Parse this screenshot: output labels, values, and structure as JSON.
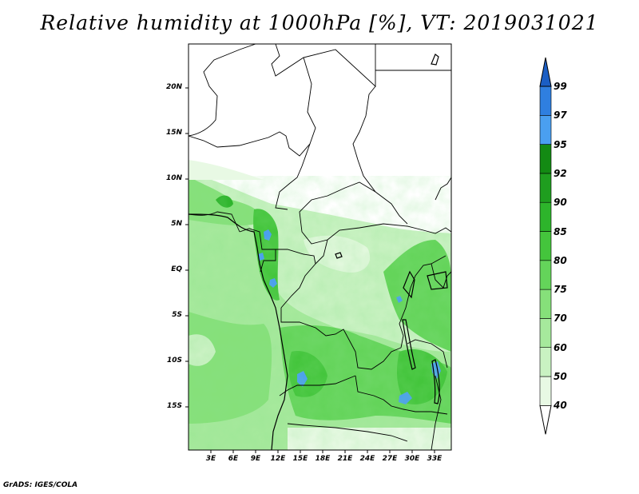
{
  "title": "Relative humidity at 1000hPa [%], VT: 2019031021",
  "credit": "GrADS: IGES/COLA",
  "map": {
    "lat_ticks": [
      "20N",
      "15N",
      "10N",
      "5N",
      "EQ",
      "5S",
      "10S",
      "15S"
    ],
    "lon_ticks": [
      "3E",
      "6E",
      "9E",
      "12E",
      "15E",
      "18E",
      "21E",
      "24E",
      "27E",
      "30E",
      "33E"
    ]
  },
  "colorbar": {
    "labels": [
      "99",
      "97",
      "95",
      "92",
      "90",
      "85",
      "80",
      "75",
      "70",
      "60",
      "50",
      "40"
    ],
    "colors": [
      "#ffffff",
      "#e8f9e4",
      "#c9f2c2",
      "#a6e99c",
      "#86e07a",
      "#64d45a",
      "#44c53c",
      "#2db42b",
      "#1f9e1f",
      "#138a13",
      "#4a9ff0",
      "#2f7fe0",
      "#1b5ec4"
    ]
  }
}
